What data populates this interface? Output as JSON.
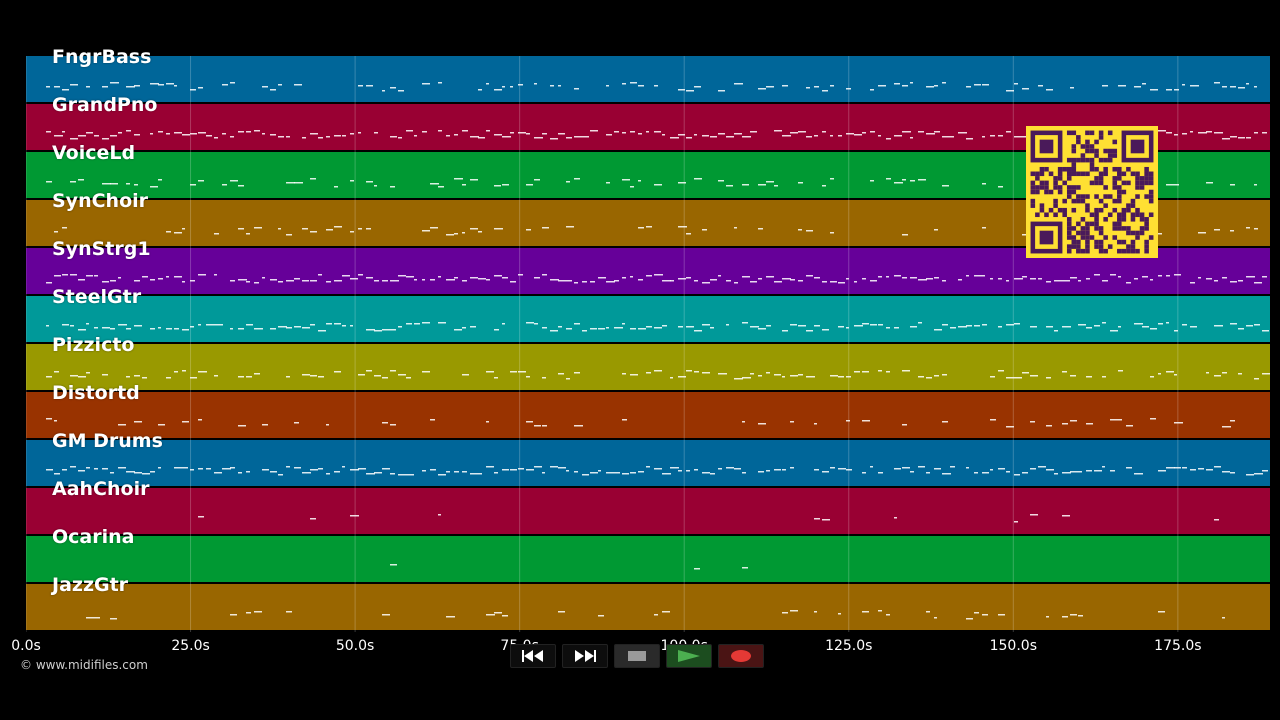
{
  "tracks": [
    {
      "name": "FngrBass",
      "color": "#006699"
    },
    {
      "name": "GrandPno",
      "color": "#990033"
    },
    {
      "name": "VoiceLd",
      "color": "#009933"
    },
    {
      "name": "SynChoir",
      "color": "#996600"
    },
    {
      "name": "SynStrg1",
      "color": "#660099"
    },
    {
      "name": "SteelGtr",
      "color": "#009999"
    },
    {
      "name": "Pizzicto",
      "color": "#999900"
    },
    {
      "name": "Distortd",
      "color": "#993300"
    },
    {
      "name": "GM Drums",
      "color": "#006699"
    },
    {
      "name": "AahChoir",
      "color": "#990033"
    },
    {
      "name": "Ocarina",
      "color": "#009933"
    },
    {
      "name": "JazzGtr",
      "color": "#996600"
    }
  ],
  "timeline": {
    "ticks": [
      "0.0s",
      "25.0s",
      "50.0s",
      "75.0s",
      "100.0s",
      "125.0s",
      "150.0s",
      "175.0s"
    ],
    "tick_values": [
      0,
      25,
      50,
      75,
      100,
      125,
      150,
      175
    ],
    "max_seconds": 189
  },
  "copyright": "© www.midifiles.com",
  "transport": {
    "icons": [
      "rewind-icon",
      "fast-forward-icon",
      "stop-icon",
      "play-icon",
      "record-icon"
    ],
    "play_color": "#4caf50",
    "record_color": "#e53935"
  },
  "qr_color": "#ffe033"
}
